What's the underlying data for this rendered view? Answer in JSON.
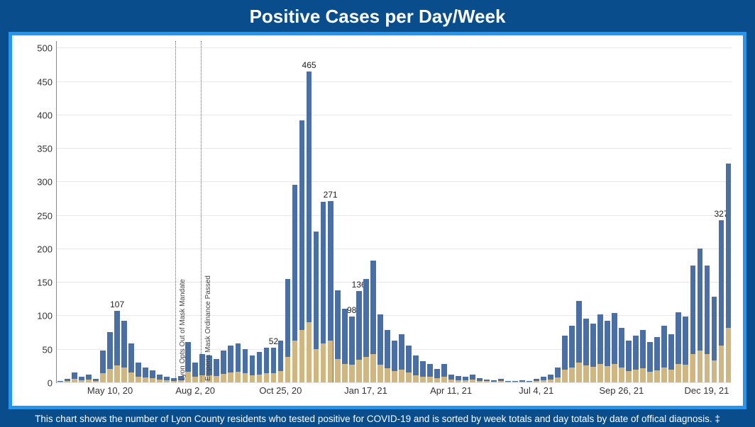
{
  "title": "Positive Cases per Day/Week",
  "caption": "This chart shows the number of Lyon County residents who tested positive for COVID-19 and is sorted by week totals and day totals by date of offical diagnosis. ‡",
  "chart": {
    "type": "bar",
    "background_color": "#ffffff",
    "frame_border_color": "#2196f3",
    "page_bg": "#0a4d8c",
    "ylim": [
      0,
      510
    ],
    "yticks": [
      0,
      50,
      100,
      150,
      200,
      250,
      300,
      350,
      400,
      450,
      500
    ],
    "grid_color": "#e8e8e8",
    "bar_color_week": "#4a6fa5",
    "bar_color_day": "#e8c47a",
    "title_fontsize": 26,
    "axis_fontsize": 13,
    "label_fontsize": 12,
    "x_tick_labels": [
      {
        "index": 7,
        "text": "May 10, 20"
      },
      {
        "index": 19,
        "text": "Aug 2, 20"
      },
      {
        "index": 31,
        "text": "Oct 25, 20"
      },
      {
        "index": 43,
        "text": "Jan 17, 21"
      },
      {
        "index": 55,
        "text": "Apr 11, 21"
      },
      {
        "index": 67,
        "text": "Jul 4, 21"
      },
      {
        "index": 79,
        "text": "Sep 26, 21"
      },
      {
        "index": 91,
        "text": "Dec 19, 21"
      }
    ],
    "reference_lines": [
      {
        "index": 16.2,
        "label": "Lyon Opts Out of Mask Mandate"
      },
      {
        "index": 19.8,
        "label": "Emporia Mask Ordinance Passed"
      }
    ],
    "data_labels": [
      {
        "index": 8,
        "text": "107"
      },
      {
        "index": 30,
        "text": "52"
      },
      {
        "index": 35,
        "text": "465"
      },
      {
        "index": 38,
        "text": "271"
      },
      {
        "index": 41,
        "text": "98"
      },
      {
        "index": 42,
        "text": "136"
      },
      {
        "index": 93,
        "text": "327"
      }
    ],
    "week_values": [
      2,
      5,
      15,
      8,
      12,
      5,
      48,
      75,
      107,
      92,
      58,
      30,
      22,
      18,
      12,
      8,
      6,
      10,
      60,
      30,
      42,
      40,
      35,
      48,
      55,
      58,
      50,
      40,
      45,
      52,
      52,
      62,
      155,
      295,
      392,
      465,
      225,
      270,
      271,
      138,
      110,
      98,
      136,
      155,
      182,
      102,
      78,
      62,
      72,
      55,
      40,
      32,
      28,
      20,
      28,
      12,
      10,
      8,
      12,
      6,
      4,
      3,
      5,
      2,
      2,
      3,
      2,
      5,
      8,
      12,
      22,
      70,
      85,
      122,
      95,
      88,
      102,
      92,
      104,
      82,
      62,
      70,
      78,
      60,
      68,
      85,
      72,
      105,
      98,
      175,
      200,
      175,
      128,
      242,
      327
    ],
    "day_values": [
      1,
      2,
      5,
      3,
      4,
      2,
      14,
      20,
      25,
      22,
      15,
      9,
      7,
      6,
      4,
      3,
      2,
      3,
      16,
      9,
      11,
      11,
      10,
      13,
      15,
      16,
      14,
      11,
      12,
      14,
      14,
      17,
      38,
      62,
      78,
      90,
      50,
      58,
      62,
      35,
      28,
      26,
      34,
      38,
      42,
      26,
      21,
      17,
      19,
      15,
      11,
      9,
      8,
      6,
      8,
      4,
      3,
      3,
      4,
      2,
      2,
      1,
      2,
      1,
      1,
      1,
      1,
      2,
      3,
      4,
      7,
      19,
      22,
      30,
      25,
      23,
      27,
      24,
      28,
      22,
      17,
      19,
      21,
      16,
      18,
      22,
      19,
      27,
      26,
      42,
      48,
      42,
      33,
      55,
      82
    ]
  }
}
